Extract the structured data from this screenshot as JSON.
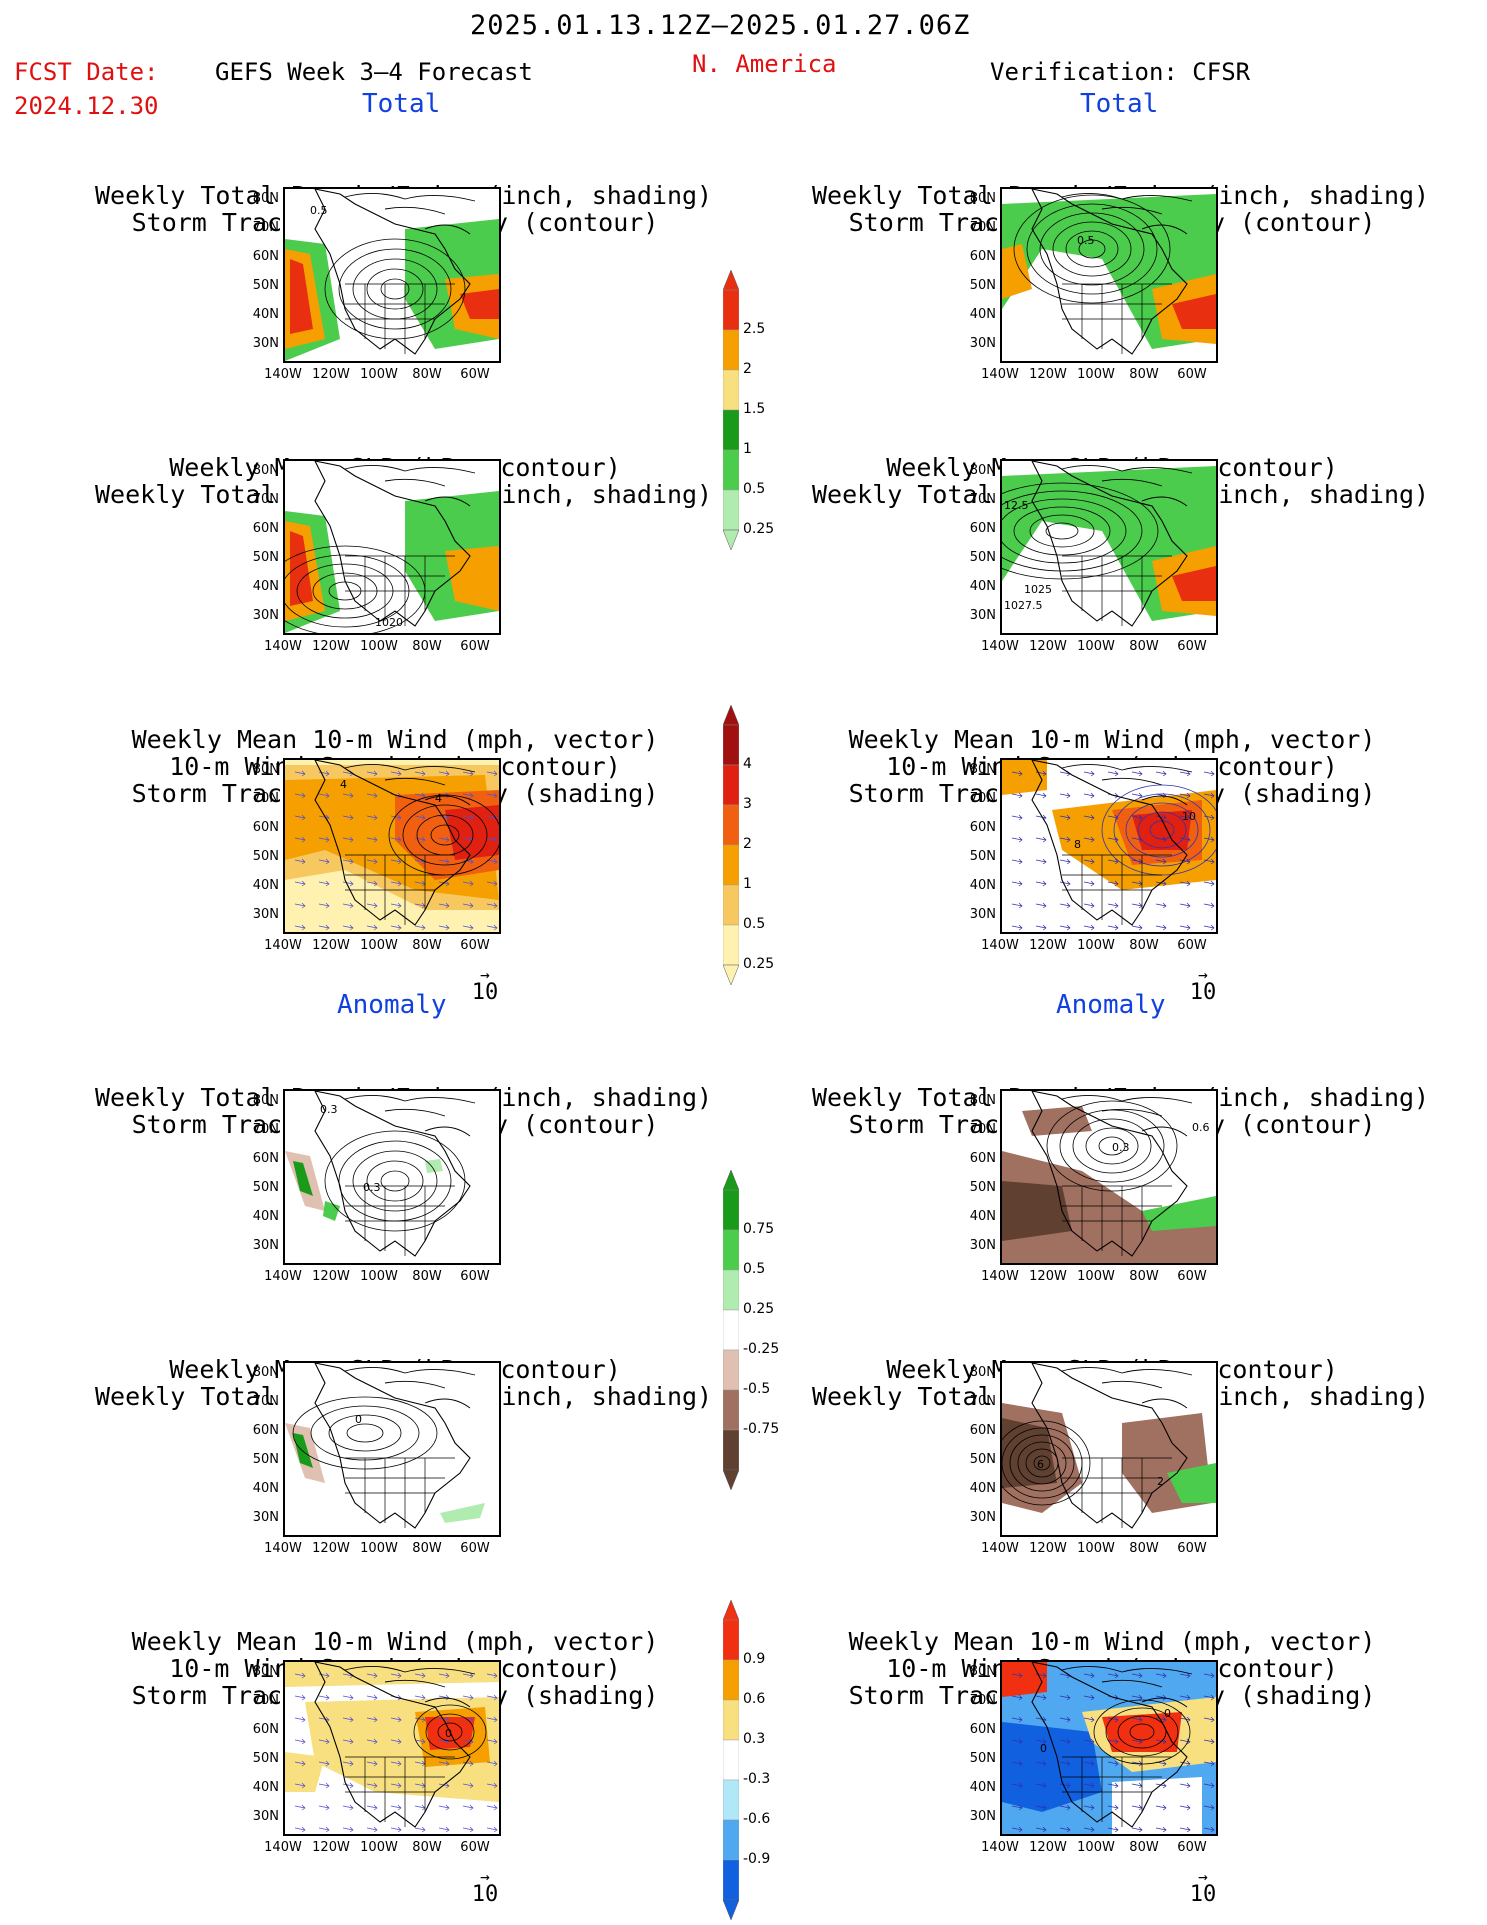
{
  "header": {
    "date_range": "2025.01.13.12Z–2025.01.27.06Z",
    "fcst_label": "FCST Date:",
    "fcst_date": "2024.12.30",
    "model": "GEFS Week 3–4 Forecast",
    "region": "N. America",
    "verification": "Verification: CFSR"
  },
  "sections": {
    "total_left": "Total",
    "total_right": "Total",
    "anomaly_left": "Anomaly",
    "anomaly_right": "Anomaly"
  },
  "titles": {
    "precip_track": [
      "Weekly Total Precip/7-day (inch, shading)",
      "Storm Track Density/7-day (contour)"
    ],
    "slp_precip": [
      "Weekly Mean SLP (hPa, contour)",
      "Weekly Total Precip/7-day (inch, shading)"
    ],
    "wind": [
      "Weekly Mean 10-m Wind (mph, vector)",
      "10-m Wind Speed (mph, contour)",
      "Storm Track Density/7-day (shading)"
    ]
  },
  "axes": {
    "lat": [
      "80N",
      "70N",
      "60N",
      "50N",
      "40N",
      "30N"
    ],
    "lon": [
      "140W",
      "120W",
      "100W",
      "80W",
      "60W"
    ]
  },
  "vector_ref": "10",
  "colorbars": {
    "precip_total": {
      "labels": [
        "2.5",
        "2",
        "1.5",
        "1",
        "0.5",
        "0.25"
      ],
      "colors": [
        "#e83010",
        "#f5a000",
        "#f8e080",
        "#1a9a1a",
        "#4ccc4c",
        "#b0ecb0"
      ]
    },
    "track_total": {
      "labels": [
        "4",
        "3",
        "2",
        "1",
        "0.5",
        "0.25"
      ],
      "colors": [
        "#a01010",
        "#e02010",
        "#f06010",
        "#f5a000",
        "#f8c860",
        "#fff2b0"
      ]
    },
    "precip_anom": {
      "labels": [
        "0.75",
        "0.5",
        "0.25",
        "-0.25",
        "-0.5",
        "-0.75"
      ],
      "colors": [
        "#1a9a1a",
        "#4ccc4c",
        "#b0ecb0",
        "#ffffff",
        "#e0c0b0",
        "#a07060",
        "#604030"
      ]
    },
    "track_anom": {
      "labels": [
        "0.9",
        "0.6",
        "0.3",
        "-0.3",
        "-0.6",
        "-0.9"
      ],
      "colors": [
        "#f03010",
        "#f5a000",
        "#f8e080",
        "#ffffff",
        "#b0e8f8",
        "#50a8f0",
        "#1060e0"
      ]
    }
  },
  "map_notes": {
    "p1": "0.5",
    "p2": "0.5",
    "s2_a": "12.5",
    "s2_b": "1025",
    "s2_c": "1027.5",
    "s1": "1020",
    "w1": "4",
    "w2": "10",
    "w2b": "8",
    "a1": "0.3",
    "a1b": "0.3",
    "a2": "0.3",
    "a2b": "0.6",
    "as1": "0",
    "as2": "6",
    "as2b": "2",
    "aw1": "0",
    "aw2": "0"
  },
  "colors": {
    "title_red": "#e01010",
    "section_blue": "#1040e0"
  }
}
